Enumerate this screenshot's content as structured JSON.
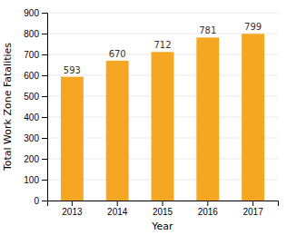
{
  "chart_data": {
    "type": "bar",
    "categories": [
      "2013",
      "2014",
      "2015",
      "2016",
      "2017"
    ],
    "values": [
      593,
      670,
      712,
      781,
      799
    ],
    "color": "#F5A623",
    "xlabel": "Year",
    "ylabel": "Total Work Zone Fatalities",
    "ylim": [
      0,
      900
    ],
    "yticks": [
      0,
      100,
      200,
      300,
      400,
      500,
      600,
      700,
      800,
      900
    ],
    "grid": true,
    "data_labels": true
  }
}
